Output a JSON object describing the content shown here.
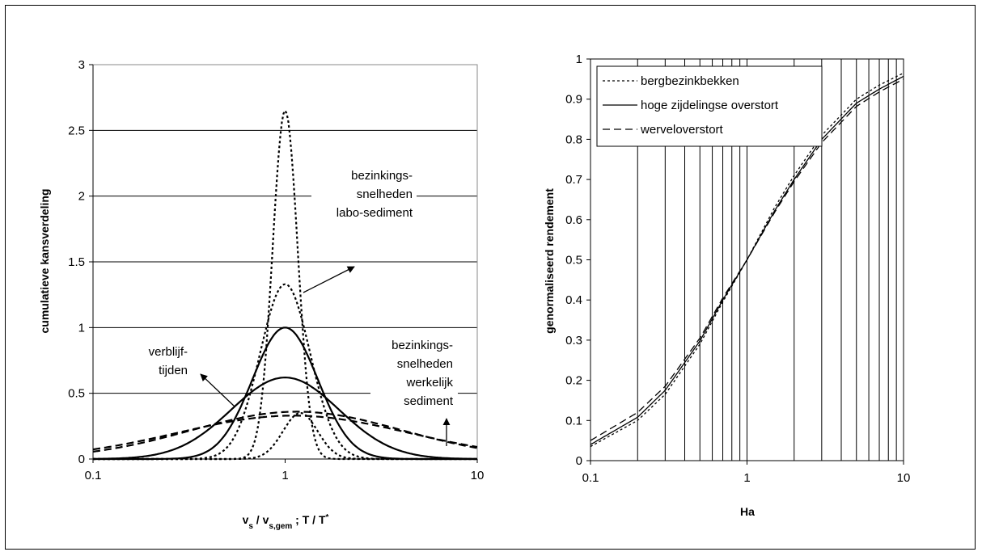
{
  "chart_data": [
    {
      "type": "line",
      "xscale": "log",
      "xlim": [
        0.1,
        10
      ],
      "ylim": [
        0,
        3
      ],
      "xticks": [
        "0.1",
        "1",
        "10"
      ],
      "yticks": [
        "0",
        "0.5",
        "1",
        "1.5",
        "2",
        "2.5",
        "3"
      ],
      "ylabel": "cumulatieve kansverdeling",
      "xlabel": {
        "a": "v",
        "a_sub": "s",
        "b": " / v",
        "b_sub": "s,gem",
        "c": " ;  T / T",
        "c_sup": "*"
      },
      "grid": "horizontal",
      "annotations": {
        "labo": [
          "bezinkings-",
          "snelheden",
          "labo-sediment"
        ],
        "verblijf": [
          "verblijf-",
          "tijden"
        ],
        "werkelijk": [
          "bezinkings-",
          "snelheden",
          "werkelijk",
          "sediment"
        ]
      },
      "series": [
        {
          "style": "dotted",
          "peak": 2.65,
          "sigma": 0.065,
          "at": 1.0
        },
        {
          "style": "dotted",
          "peak": 1.33,
          "sigma": 0.13,
          "at": 1.0
        },
        {
          "style": "dotted",
          "peak": 0.35,
          "sigma": 0.09,
          "at": 1.2,
          "note": "right of peak"
        },
        {
          "style": "solid",
          "peak": 1.0,
          "sigma": 0.17,
          "at": 1.0
        },
        {
          "style": "solid",
          "peak": 0.62,
          "sigma": 0.28,
          "at": 1.0
        },
        {
          "style": "dashed",
          "peak": 0.36,
          "sigma": 0.55,
          "at": 1.15
        },
        {
          "style": "dashed",
          "peak": 0.33,
          "sigma": 0.6,
          "at": 1.1
        }
      ]
    },
    {
      "type": "line",
      "xscale": "log",
      "xlim": [
        0.1,
        10
      ],
      "ylim": [
        0,
        1
      ],
      "xticks": [
        "0.1",
        "1",
        "10"
      ],
      "yticks": [
        "0",
        "0.1",
        "0.2",
        "0.3",
        "0.4",
        "0.5",
        "0.6",
        "0.7",
        "0.8",
        "0.9",
        "1"
      ],
      "xlabel": "Ha",
      "ylabel": "genormaliseerd rendement",
      "grid": "vertical",
      "legend_position": "top-left",
      "series": [
        {
          "name": "bergbezinkbekken",
          "style": "dotted",
          "x": [
            0.1,
            0.2,
            0.3,
            0.5,
            0.7,
            1,
            1.5,
            2,
            3,
            5,
            7,
            10
          ],
          "values": [
            0.035,
            0.1,
            0.165,
            0.29,
            0.395,
            0.5,
            0.63,
            0.71,
            0.81,
            0.9,
            0.935,
            0.965
          ]
        },
        {
          "name": "hoge zijdelingse overstort",
          "style": "solid",
          "x": [
            0.1,
            0.2,
            0.3,
            0.5,
            0.7,
            1,
            1.5,
            2,
            3,
            5,
            7,
            10
          ],
          "values": [
            0.04,
            0.108,
            0.175,
            0.298,
            0.4,
            0.5,
            0.622,
            0.7,
            0.8,
            0.89,
            0.925,
            0.957
          ]
        },
        {
          "name": "werveloverstort",
          "style": "dashed",
          "x": [
            0.1,
            0.2,
            0.3,
            0.5,
            0.7,
            1,
            1.5,
            2,
            3,
            5,
            7,
            10
          ],
          "values": [
            0.05,
            0.12,
            0.185,
            0.305,
            0.405,
            0.5,
            0.618,
            0.695,
            0.792,
            0.882,
            0.918,
            0.95
          ]
        }
      ]
    }
  ]
}
